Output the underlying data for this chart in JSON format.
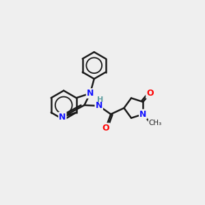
{
  "bg_color": "#efefef",
  "bond_color": "#1a1a1a",
  "bond_width": 1.8,
  "N_color": "#1414ff",
  "O_color": "#ff0000",
  "H_color": "#5f9ea0",
  "font_size": 9,
  "fig_size": [
    3.0,
    3.0
  ],
  "dpi": 100,
  "xlim": [
    -2.6,
    2.2
  ],
  "ylim": [
    -1.9,
    1.9
  ]
}
